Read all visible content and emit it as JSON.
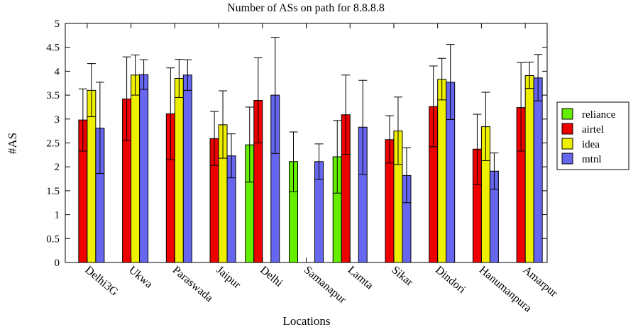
{
  "chart_data": {
    "type": "bar",
    "title": "Number of ASs on path for 8.8.8.8",
    "xlabel": "Locations",
    "ylabel": "#AS",
    "ylim": [
      0,
      5
    ],
    "yticks": [
      "0",
      "0.5",
      "1",
      "1.5",
      "2",
      "2.5",
      "3",
      "3.5",
      "4",
      "4.5",
      "5"
    ],
    "legend_position": "right",
    "categories": [
      "Delhi3G",
      "Ukwa",
      "Paraswada",
      "Jaipur",
      "Delhi",
      "Samanapur",
      "Lamta",
      "Sikar",
      "Dindori",
      "Hanumanpura",
      "Amarpur"
    ],
    "series": [
      {
        "name": "reliance",
        "color": "#66ee00",
        "values": [
          null,
          null,
          null,
          null,
          2.46,
          2.11,
          2.21,
          null,
          null,
          null,
          null
        ],
        "err_low": [
          null,
          null,
          null,
          null,
          1.68,
          1.48,
          1.45,
          null,
          null,
          null,
          null
        ],
        "err_high": [
          null,
          null,
          null,
          null,
          3.25,
          2.73,
          2.97,
          null,
          null,
          null,
          null
        ]
      },
      {
        "name": "airtel",
        "color": "#ee0000",
        "values": [
          2.98,
          3.42,
          3.11,
          2.59,
          3.39,
          null,
          3.09,
          2.57,
          3.26,
          2.37,
          3.24
        ],
        "err_low": [
          2.33,
          2.55,
          2.15,
          2.03,
          2.5,
          null,
          2.26,
          2.08,
          2.42,
          1.63,
          2.33
        ],
        "err_high": [
          3.63,
          4.3,
          4.07,
          3.16,
          4.28,
          null,
          3.92,
          3.07,
          4.11,
          3.1,
          4.18
        ]
      },
      {
        "name": "idea",
        "color": "#eeee00",
        "values": [
          3.6,
          3.92,
          3.85,
          2.88,
          null,
          null,
          null,
          2.75,
          3.83,
          2.84,
          3.91
        ],
        "err_low": [
          3.05,
          3.5,
          3.45,
          2.18,
          null,
          null,
          null,
          2.05,
          3.4,
          2.13,
          3.64
        ],
        "err_high": [
          4.16,
          4.34,
          4.25,
          3.59,
          null,
          null,
          null,
          3.46,
          4.27,
          3.56,
          4.19
        ]
      },
      {
        "name": "mtnl",
        "color": "#6666ee",
        "values": [
          2.81,
          3.93,
          3.92,
          2.23,
          3.5,
          2.11,
          2.83,
          1.82,
          3.77,
          1.91,
          3.86
        ],
        "err_low": [
          1.86,
          3.62,
          3.6,
          1.77,
          2.28,
          1.74,
          1.84,
          1.25,
          2.99,
          1.53,
          3.38
        ],
        "err_high": [
          3.77,
          4.24,
          4.24,
          2.69,
          4.71,
          2.48,
          3.81,
          2.4,
          4.56,
          2.29,
          4.35
        ]
      }
    ]
  }
}
